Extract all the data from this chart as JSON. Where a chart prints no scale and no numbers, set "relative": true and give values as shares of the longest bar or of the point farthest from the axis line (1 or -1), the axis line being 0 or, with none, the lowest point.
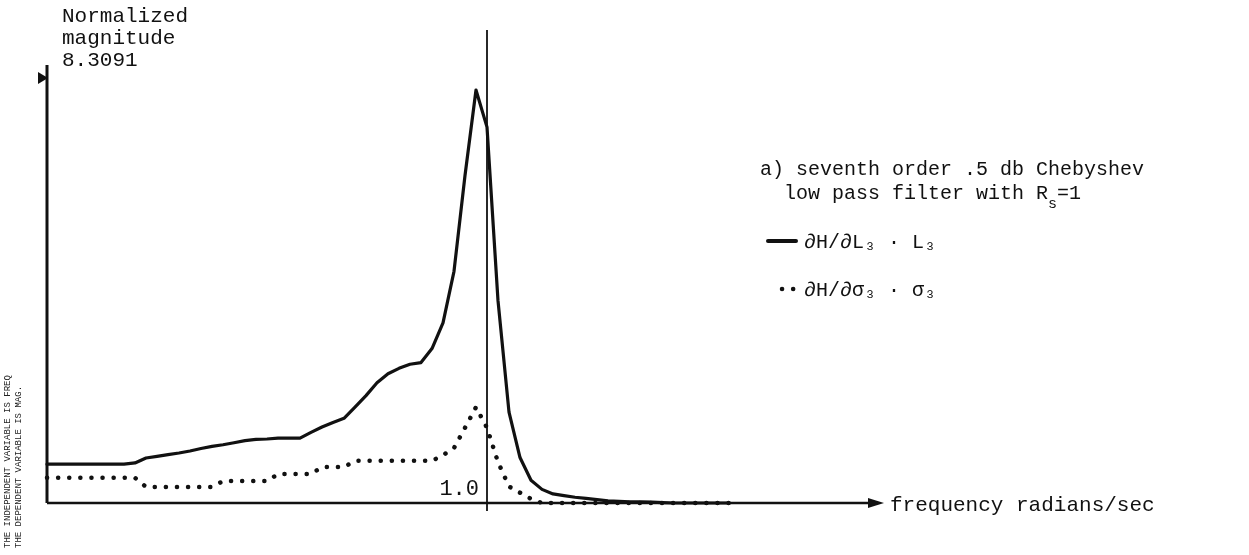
{
  "chart_data": {
    "type": "line",
    "relative": true,
    "ylabel": "Normalized magnitude",
    "legend_title": "a) seventh order .5 db Chebyshev low pass filter with R$_{s}$=1",
    "legend": "right",
    "categories": [
      null,
      null,
      null,
      null,
      null,
      null,
      null,
      null,
      null,
      null,
      null,
      null,
      null,
      null,
      null,
      null,
      null,
      null,
      null,
      null,
      null,
      null,
      null,
      null,
      null,
      null,
      null,
      null,
      null,
      null,
      null,
      null,
      null,
      null,
      null,
      null,
      null,
      null,
      null,
      null,
      null,
      null,
      null,
      null,
      null,
      null,
      null,
      null,
      null,
      null,
      null,
      null,
      null,
      null,
      null,
      null,
      null,
      null,
      null,
      null,
      null,
      null,
      null
    ],
    "annotations": [
      "8.3091",
      "1.0",
      "frequency radians/sec",
      "THE INDEPENDENT VARIABLE IS FREQ",
      "THE DEPENDENT VARIABLE IS MAG."
    ],
    "series": [
      {
        "name": "∂H/∂L₃ · L₃",
        "color": "#111111",
        "values": [
          0.094,
          0.094,
          0.094,
          0.094,
          0.094,
          0.094,
          0.094,
          0.094,
          0.097,
          0.109,
          0.113,
          0.117,
          0.121,
          0.126,
          0.132,
          0.137,
          0.141,
          0.146,
          0.151,
          0.154,
          0.155,
          0.157,
          0.157,
          0.157,
          0.171,
          0.184,
          0.195,
          0.205,
          0.232,
          0.26,
          0.291,
          0.313,
          0.326,
          0.336,
          0.34,
          0.374,
          0.436,
          0.561,
          0.793,
          1.0,
          0.91,
          0.49,
          0.22,
          0.11,
          0.055,
          0.033,
          0.022,
          0.018,
          0.014,
          0.011,
          0.008,
          0.005,
          0.004,
          0.003,
          0.003,
          0.002,
          0.001,
          0,
          0,
          0,
          0,
          0,
          0
        ]
      },
      {
        "name": "∂H/∂σ₃ · σ₃",
        "color": "#111111",
        "line_style": "dotted",
        "values": [
          0.061,
          0.061,
          0.061,
          0.061,
          0.061,
          0.061,
          0.061,
          0.061,
          0.061,
          0.039,
          0.039,
          0.039,
          0.039,
          0.039,
          0.039,
          0.039,
          0.053,
          0.053,
          0.053,
          0.053,
          0.053,
          0.07,
          0.07,
          0.07,
          0.07,
          0.087,
          0.087,
          0.087,
          0.102,
          0.102,
          0.102,
          0.102,
          0.102,
          0.102,
          0.102,
          0.102,
          0.116,
          0.133,
          0.182,
          0.232,
          0.182,
          0.099,
          0.04,
          0.025,
          0.01,
          0,
          0,
          0,
          0,
          0,
          0,
          0,
          0,
          0,
          0,
          0,
          0,
          0,
          0,
          0,
          0,
          0,
          0
        ]
      }
    ]
  }
}
